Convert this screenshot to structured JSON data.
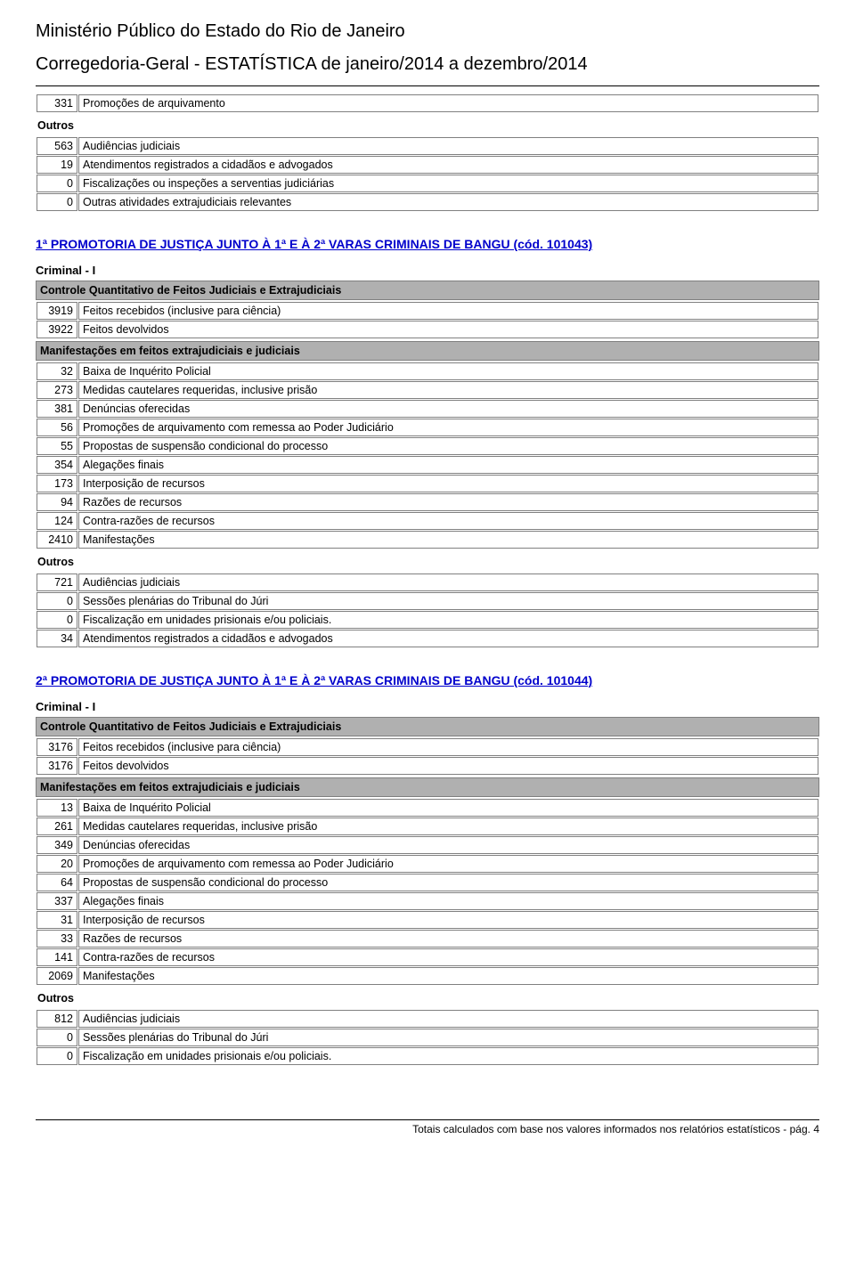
{
  "header": {
    "title": "Ministério Público do Estado do Rio de Janeiro",
    "subtitle": "Corregedoria-Geral - ESTATÍSTICA de janeiro/2014 a dezembro/2014"
  },
  "topTable": {
    "rows": [
      {
        "n": "331",
        "t": "Promoções de arquivamento"
      }
    ],
    "outrosLabel": "Outros",
    "outrosRows": [
      {
        "n": "563",
        "t": "Audiências judiciais"
      },
      {
        "n": "19",
        "t": "Atendimentos registrados a cidadãos e advogados"
      },
      {
        "n": "0",
        "t": "Fiscalizações ou inspeções a serventias judiciárias"
      },
      {
        "n": "0",
        "t": "Outras atividades extrajudiciais relevantes"
      }
    ]
  },
  "section1": {
    "title": "1ª PROMOTORIA DE JUSTIÇA JUNTO À 1ª E À 2ª VARAS CRIMINAIS DE BANGU (cód. 101043)",
    "group": "Criminal - I",
    "controleHeader": "Controle Quantitativo de Feitos Judiciais e Extrajudiciais",
    "controleRows": [
      {
        "n": "3919",
        "t": "Feitos recebidos (inclusive para ciência)"
      },
      {
        "n": "3922",
        "t": "Feitos devolvidos"
      }
    ],
    "manifHeader": "Manifestações em feitos extrajudiciais e judiciais",
    "manifRows": [
      {
        "n": "32",
        "t": "Baixa de Inquérito Policial"
      },
      {
        "n": "273",
        "t": "Medidas cautelares requeridas, inclusive prisão"
      },
      {
        "n": "381",
        "t": "Denúncias oferecidas"
      },
      {
        "n": "56",
        "t": "Promoções de arquivamento com remessa ao Poder Judiciário"
      },
      {
        "n": "55",
        "t": "Propostas de suspensão condicional do processo"
      },
      {
        "n": "354",
        "t": "Alegações finais"
      },
      {
        "n": "173",
        "t": "Interposição de recursos"
      },
      {
        "n": "94",
        "t": "Razões de recursos"
      },
      {
        "n": "124",
        "t": "Contra-razões de recursos"
      },
      {
        "n": "2410",
        "t": "Manifestações"
      }
    ],
    "outrosLabel": "Outros",
    "outrosRows": [
      {
        "n": "721",
        "t": "Audiências judiciais"
      },
      {
        "n": "0",
        "t": "Sessões plenárias do Tribunal do Júri"
      },
      {
        "n": "0",
        "t": "Fiscalização em unidades prisionais e/ou policiais."
      },
      {
        "n": "34",
        "t": "Atendimentos registrados a cidadãos e advogados"
      }
    ]
  },
  "section2": {
    "title": "2ª PROMOTORIA DE JUSTIÇA JUNTO À 1ª E À 2ª VARAS CRIMINAIS DE BANGU (cód. 101044)",
    "group": "Criminal - I",
    "controleHeader": "Controle Quantitativo de Feitos Judiciais e Extrajudiciais",
    "controleRows": [
      {
        "n": "3176",
        "t": "Feitos recebidos (inclusive para ciência)"
      },
      {
        "n": "3176",
        "t": "Feitos devolvidos"
      }
    ],
    "manifHeader": "Manifestações em feitos extrajudiciais e judiciais",
    "manifRows": [
      {
        "n": "13",
        "t": "Baixa de Inquérito Policial"
      },
      {
        "n": "261",
        "t": "Medidas cautelares requeridas, inclusive prisão"
      },
      {
        "n": "349",
        "t": "Denúncias oferecidas"
      },
      {
        "n": "20",
        "t": "Promoções de arquivamento com remessa ao Poder Judiciário"
      },
      {
        "n": "64",
        "t": "Propostas de suspensão condicional do processo"
      },
      {
        "n": "337",
        "t": "Alegações finais"
      },
      {
        "n": "31",
        "t": "Interposição de recursos"
      },
      {
        "n": "33",
        "t": "Razões de recursos"
      },
      {
        "n": "141",
        "t": "Contra-razões de recursos"
      },
      {
        "n": "2069",
        "t": "Manifestações"
      }
    ],
    "outrosLabel": "Outros",
    "outrosRows": [
      {
        "n": "812",
        "t": "Audiências judiciais"
      },
      {
        "n": "0",
        "t": "Sessões plenárias do Tribunal do Júri"
      },
      {
        "n": "0",
        "t": "Fiscalização em unidades prisionais e/ou policiais."
      }
    ]
  },
  "footer": {
    "text": "Totais calculados com base nos valores informados nos relatórios estatísticos -  pág. 4"
  }
}
